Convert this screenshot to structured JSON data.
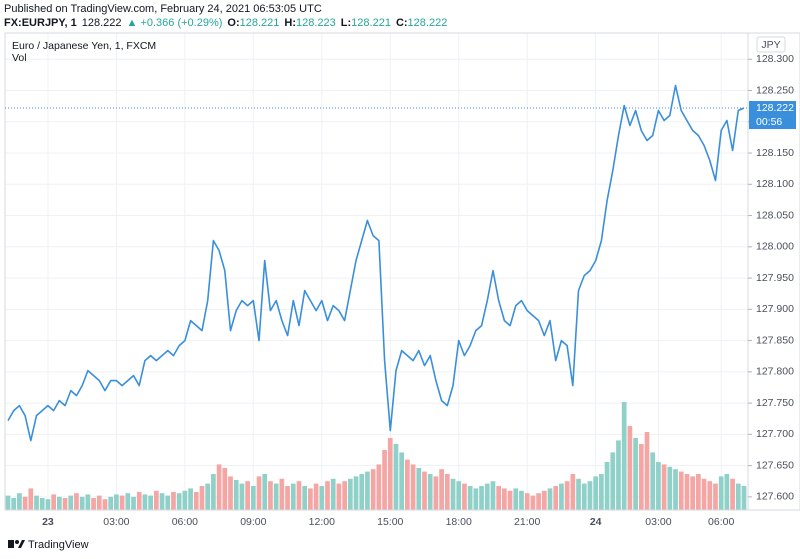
{
  "header": {
    "published": "Published on TradingView.com, February 24, 2021 06:53:05 UTC",
    "symbol": "FX:EURJPY, 1",
    "last": "128.222",
    "change": "▲ +0.366 (+0.29%)",
    "ohlc": [
      {
        "label": "O:",
        "value": "128.221"
      },
      {
        "label": "H:",
        "value": "128.223"
      },
      {
        "label": "L:",
        "value": "128.221"
      },
      {
        "label": "C:",
        "value": "128.222"
      }
    ]
  },
  "chart_data": {
    "type": "line",
    "title": "Euro / Japanese Yen, 1, FXCM",
    "currency": "JPY",
    "countdown": "00:56",
    "color": "#3a8fdc",
    "grid": true,
    "ylim": [
      127.579,
      128.342
    ],
    "yticks": [
      {
        "value": 127.6,
        "label": "127.600"
      },
      {
        "value": 127.65,
        "label": "127.650"
      },
      {
        "value": 127.7,
        "label": "127.700"
      },
      {
        "value": 127.75,
        "label": "127.750"
      },
      {
        "value": 127.8,
        "label": "127.800"
      },
      {
        "value": 127.85,
        "label": "127.850"
      },
      {
        "value": 127.9,
        "label": "127.900"
      },
      {
        "value": 127.95,
        "label": "127.950"
      },
      {
        "value": 128.0,
        "label": "128.000"
      },
      {
        "value": 128.05,
        "label": "128.050"
      },
      {
        "value": 128.1,
        "label": "128.100"
      },
      {
        "value": 128.15,
        "label": "128.150"
      },
      {
        "value": 128.2,
        "label": "128.200"
      },
      {
        "value": 128.25,
        "label": "128.250"
      },
      {
        "value": 128.3,
        "label": "128.300"
      }
    ],
    "categories": [
      null,
      null,
      null,
      null,
      null,
      null,
      null,
      "23",
      null,
      null,
      null,
      null,
      null,
      null,
      null,
      null,
      null,
      null,
      null,
      "03:00",
      null,
      null,
      null,
      null,
      null,
      null,
      null,
      null,
      null,
      null,
      null,
      "06:00",
      null,
      null,
      null,
      null,
      null,
      null,
      null,
      null,
      null,
      null,
      null,
      "09:00",
      null,
      null,
      null,
      null,
      null,
      null,
      null,
      null,
      null,
      null,
      null,
      "12:00",
      null,
      null,
      null,
      null,
      null,
      null,
      null,
      null,
      null,
      null,
      null,
      "15:00",
      null,
      null,
      null,
      null,
      null,
      null,
      null,
      null,
      null,
      null,
      null,
      "18:00",
      null,
      null,
      null,
      null,
      null,
      null,
      null,
      null,
      null,
      null,
      null,
      "21:00",
      null,
      null,
      null,
      null,
      null,
      null,
      null,
      null,
      null,
      null,
      null,
      "24",
      null,
      null,
      null,
      null,
      null,
      null,
      null,
      null,
      null,
      null,
      "03:00",
      null,
      null,
      null,
      null,
      null,
      null,
      null,
      null,
      null,
      null,
      "06:00",
      null,
      null,
      null,
      null
    ],
    "values": [
      127.722,
      127.738,
      127.746,
      127.73,
      127.69,
      127.73,
      127.738,
      127.746,
      127.738,
      127.754,
      127.746,
      127.77,
      127.762,
      127.778,
      127.802,
      127.794,
      127.786,
      127.77,
      127.786,
      127.786,
      127.778,
      127.786,
      127.794,
      127.778,
      127.818,
      127.826,
      127.818,
      127.826,
      127.834,
      127.826,
      127.842,
      127.85,
      127.882,
      127.874,
      127.866,
      127.914,
      128.01,
      127.994,
      127.962,
      127.866,
      127.898,
      127.914,
      127.906,
      127.914,
      127.85,
      127.978,
      127.898,
      127.914,
      127.882,
      127.858,
      127.914,
      127.874,
      127.93,
      127.914,
      127.898,
      127.914,
      127.882,
      127.906,
      127.898,
      127.882,
      127.93,
      127.978,
      128.01,
      128.042,
      128.018,
      128.01,
      127.818,
      127.706,
      127.802,
      127.834,
      127.826,
      127.818,
      127.834,
      127.81,
      127.826,
      127.786,
      127.754,
      127.746,
      127.778,
      127.85,
      127.826,
      127.842,
      127.866,
      127.874,
      127.914,
      127.962,
      127.914,
      127.882,
      127.874,
      127.906,
      127.914,
      127.898,
      127.89,
      127.882,
      127.858,
      127.882,
      127.818,
      127.85,
      127.842,
      127.778,
      127.93,
      127.954,
      127.962,
      127.978,
      128.01,
      128.074,
      128.122,
      128.178,
      128.226,
      128.194,
      128.218,
      128.186,
      128.17,
      128.178,
      128.218,
      128.202,
      128.21,
      128.258,
      128.218,
      128.202,
      128.186,
      128.178,
      128.162,
      128.138,
      128.106,
      128.186,
      128.202,
      128.154,
      128.218,
      128.222
    ],
    "volume": {
      "name": "Vol",
      "up_color": "#8fd0c8",
      "down_color": "#f3a6a4",
      "values": [
        12,
        10,
        14,
        11,
        18,
        12,
        10,
        9,
        13,
        11,
        10,
        12,
        14,
        11,
        13,
        10,
        12,
        9,
        11,
        13,
        12,
        14,
        11,
        15,
        13,
        12,
        16,
        14,
        12,
        15,
        14,
        16,
        18,
        15,
        20,
        22,
        30,
        38,
        35,
        28,
        25,
        22,
        24,
        20,
        28,
        30,
        24,
        22,
        26,
        20,
        22,
        24,
        20,
        18,
        22,
        20,
        24,
        26,
        22,
        24,
        26,
        28,
        30,
        32,
        34,
        38,
        50,
        60,
        55,
        48,
        42,
        38,
        35,
        32,
        30,
        28,
        34,
        30,
        26,
        24,
        22,
        20,
        18,
        20,
        22,
        24,
        20,
        18,
        16,
        18,
        16,
        14,
        12,
        14,
        16,
        18,
        20,
        22,
        24,
        30,
        26,
        22,
        24,
        28,
        30,
        40,
        48,
        58,
        90,
        70,
        60,
        55,
        65,
        48,
        40,
        38,
        36,
        34,
        32,
        30,
        28,
        30,
        26,
        24,
        22,
        28,
        30,
        26,
        22,
        20
      ]
    },
    "y2lim": [
      0,
      100
    ]
  },
  "footer": {
    "brand": "TradingView"
  }
}
